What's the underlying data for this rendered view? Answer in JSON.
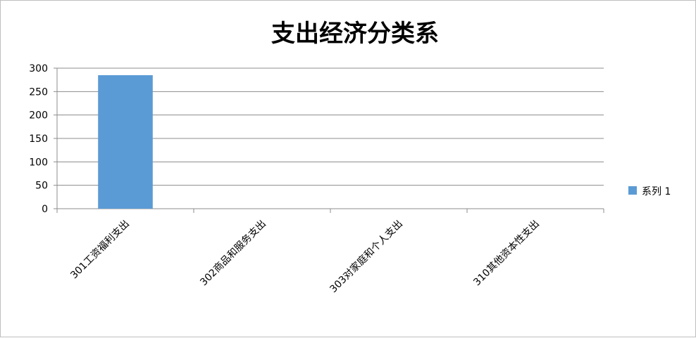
{
  "chart_data": {
    "type": "bar",
    "title": "支出经济分类系",
    "categories": [
      "301工资福利支出",
      "302商品和服务支出",
      "303对家庭和个人支出",
      "310其他资本性支出"
    ],
    "series": [
      {
        "name": "系列 1",
        "values": [
          285,
          0,
          0,
          0
        ],
        "color": "#5b9bd5"
      }
    ],
    "ylim": [
      0,
      300
    ],
    "yticks": [
      0,
      50,
      100,
      150,
      200,
      250,
      300
    ],
    "grid": true,
    "legend_position": "right"
  }
}
